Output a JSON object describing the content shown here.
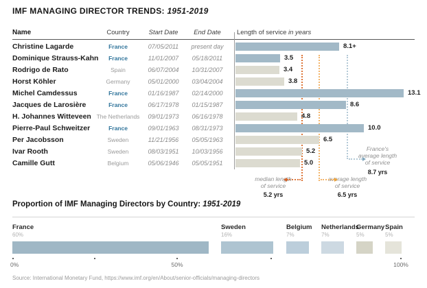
{
  "title": {
    "main": "IMF MANAGING DIRECTOR TRENDS:",
    "years": "1951-2019"
  },
  "table": {
    "headers": {
      "name": "Name",
      "country": "Country",
      "start": "Start Date",
      "end": "End Date",
      "service": "Length of service",
      "service_unit": "in years"
    },
    "rows": [
      {
        "name": "Christine Lagarde",
        "country": "France",
        "is_france": true,
        "start": "07/05/2011",
        "end": "present day",
        "value": 8.1,
        "value_label": "8.1+"
      },
      {
        "name": "Dominique Strauss-Kahn",
        "country": "France",
        "is_france": true,
        "start": "11/01/2007",
        "end": "05/18/2011",
        "value": 3.5,
        "value_label": "3.5"
      },
      {
        "name": "Rodrigo de Rato",
        "country": "Spain",
        "is_france": false,
        "start": "06/07/2004",
        "end": "10/31/2007",
        "value": 3.4,
        "value_label": "3.4"
      },
      {
        "name": "Horst Köhler",
        "country": "Germany",
        "is_france": false,
        "start": "05/01/2000",
        "end": "03/04/2004",
        "value": 3.8,
        "value_label": "3.8"
      },
      {
        "name": "Michel Camdessus",
        "country": "France",
        "is_france": true,
        "start": "01/16/1987",
        "end": "02/14/2000",
        "value": 13.1,
        "value_label": "13.1"
      },
      {
        "name": "Jacques de Larosière",
        "country": "France",
        "is_france": true,
        "start": "06/17/1978",
        "end": "01/15/1987",
        "value": 8.6,
        "value_label": "8.6"
      },
      {
        "name": "H. Johannes Witteveen",
        "country": "The Netherlands",
        "is_france": false,
        "start": "09/01/1973",
        "end": "06/16/1978",
        "value": 4.8,
        "value_label": "4.8"
      },
      {
        "name": "Pierre-Paul Schweitzer",
        "country": "France",
        "is_france": true,
        "start": "09/01/1963",
        "end": "08/31/1973",
        "value": 10.0,
        "value_label": "10.0"
      },
      {
        "name": "Per Jacobsson",
        "country": "Sweden",
        "is_france": false,
        "start": "11/21/1956",
        "end": "05/05/1963",
        "value": 6.5,
        "value_label": "6.5"
      },
      {
        "name": "Ivar Rooth",
        "country": "Sweden",
        "is_france": false,
        "start": "08/03/1951",
        "end": "10/03/1956",
        "value": 5.2,
        "value_label": "5.2"
      },
      {
        "name": "Camille Gutt",
        "country": "Belgium",
        "is_france": false,
        "start": "05/06/1946",
        "end": "05/05/1951",
        "value": 5.0,
        "value_label": "5.0"
      }
    ]
  },
  "annotations": {
    "median": {
      "value": 5.2,
      "line1": "median length",
      "line2": "of service",
      "value_label": "5.2 yrs"
    },
    "average": {
      "value": 6.5,
      "line1": "average length",
      "line2": "of service",
      "value_label": "6.5 yrs"
    },
    "france_avg": {
      "value": 8.7,
      "line1": "France's",
      "line2": "average length",
      "line3": "of service",
      "value_label": "8.7 yrs"
    }
  },
  "proportion": {
    "title_main": "Proportion of IMF Managing Directors by Country:",
    "title_years": "1951-2019",
    "segments": [
      {
        "country": "France",
        "pct_label": "60%",
        "value": 60,
        "color": "#9fb7c5"
      },
      {
        "country": "Sweden",
        "pct_label": "16%",
        "value": 16,
        "color": "#aec4d1"
      },
      {
        "country": "Belgium",
        "pct_label": "7%",
        "value": 7,
        "color": "#bccedb"
      },
      {
        "country": "Netherlands",
        "pct_label": "7%",
        "value": 7,
        "color": "#cdd9e2"
      },
      {
        "country": "Germany",
        "pct_label": "5%",
        "value": 5,
        "color": "#d5d4c6"
      },
      {
        "country": "Spain",
        "pct_label": "5%",
        "value": 5,
        "color": "#e5e4da"
      }
    ],
    "axis_ticks": [
      {
        "pos": 0,
        "label": "0%"
      },
      {
        "pos": 25,
        "label": ""
      },
      {
        "pos": 50,
        "label": "50%"
      },
      {
        "pos": 75,
        "label": ""
      },
      {
        "pos": 100,
        "label": "100%"
      }
    ]
  },
  "source": "Source: International Monetary Fund, https://www.imf.org/en/About/senior-officials/managing-directors",
  "colors": {
    "bar_france": "#a2b9c7",
    "bar_other": "#dcdbd0",
    "france_text": "#33769c",
    "median_line": "#dd7436",
    "median_arrow": "#d4632a",
    "average_line": "#f3b469",
    "average_arrow": "#eda43c",
    "france_line": "#b3c9d6",
    "france_arrow": "#7fa6bd"
  },
  "chart_data": [
    {
      "type": "bar",
      "orientation": "horizontal",
      "title": "IMF MANAGING DIRECTOR TRENDS: 1951-2019",
      "categories": [
        "Christine Lagarde",
        "Dominique Strauss-Kahn",
        "Rodrigo de Rato",
        "Horst Köhler",
        "Michel Camdessus",
        "Jacques de Larosière",
        "H. Johannes Witteveen",
        "Pierre-Paul Schweitzer",
        "Per Jacobsson",
        "Ivar Rooth",
        "Camille Gutt"
      ],
      "values": [
        8.1,
        3.5,
        3.4,
        3.8,
        13.1,
        8.6,
        4.8,
        10.0,
        6.5,
        5.2,
        5.0
      ],
      "value_labels": [
        "8.1+",
        "3.5",
        "3.4",
        "3.8",
        "13.1",
        "8.6",
        "4.8",
        "10.0",
        "6.5",
        "5.2",
        "5.0"
      ],
      "xlabel": "Length of service in years",
      "xlim": [
        0,
        13.1
      ],
      "grid": false,
      "highlight_series": "France bars shown in blue, others in gray",
      "reference_lines": [
        {
          "label": "median length of service",
          "value": 5.2
        },
        {
          "label": "average length of service",
          "value": 6.5
        },
        {
          "label": "France's average length of service",
          "value": 8.7
        }
      ]
    },
    {
      "type": "bar",
      "orientation": "horizontal-stacked",
      "title": "Proportion of IMF Managing Directors by Country: 1951-2019",
      "categories": [
        "France",
        "Sweden",
        "Belgium",
        "Netherlands",
        "Germany",
        "Spain"
      ],
      "values": [
        60,
        16,
        7,
        7,
        5,
        5
      ],
      "xlim": [
        0,
        100
      ],
      "tick_labels": [
        "0%",
        "50%",
        "100%"
      ]
    }
  ]
}
